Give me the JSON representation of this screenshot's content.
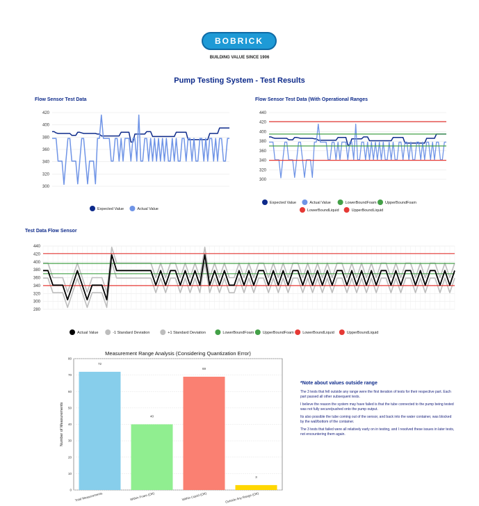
{
  "header": {
    "logo_text": "BOBRICK",
    "tagline": "BUILDING VALUE SINCE 1906",
    "page_title": "Pump Testing System - Test Results"
  },
  "colors": {
    "expected": "#0d2a8a",
    "actual_blue": "#6f94e6",
    "foam_green": "#43a047",
    "liquid_red": "#e53935",
    "std": "#bdbdbd",
    "actual_black": "#000000"
  },
  "note": {
    "title": "*Note about values outside range",
    "paragraphs": [
      "The 3 tests that fell outside any range were the first iteration of tests for their respective part. Each part passed all other subsequent tests.",
      "I believe the reason the system may have failed is that the tube connected to the pump being tested was not fully secure/pushed onto the pump output.",
      "Its also possible the tube coming out of the sensor, and back into the water container, was blocked by the wall/bottom of the container.",
      "The 3 tests that failed were all relatively early on in testing, and I resolved these issues in later tests, not encountering them again."
    ]
  },
  "chart_data": [
    {
      "type": "line",
      "title": "Flow Sensor Test Data",
      "ylim": [
        300,
        420
      ],
      "yticks": [
        "300",
        "320",
        "340",
        "360",
        "380",
        "400",
        "420"
      ],
      "legend_position": "bottom",
      "series": [
        {
          "name": "Expected Value",
          "values": [
            389,
            389,
            387,
            386,
            386,
            386,
            386,
            386,
            386,
            386,
            383,
            383,
            383,
            388,
            388,
            387,
            386,
            386,
            386,
            386,
            386,
            386,
            386,
            385,
            385,
            382,
            382,
            382,
            382,
            382,
            382,
            382,
            382,
            382,
            382,
            388,
            388,
            388,
            388,
            388,
            372,
            372,
            385,
            385,
            385,
            385,
            385,
            385,
            389,
            389,
            389,
            381,
            381,
            381,
            381,
            381,
            381,
            381,
            381,
            381,
            381,
            381,
            381,
            388,
            388,
            388,
            388,
            388,
            388,
            376,
            376,
            376,
            376,
            376,
            376,
            376,
            376,
            376,
            376,
            376,
            386,
            386,
            386,
            386,
            386,
            395,
            395,
            395,
            395,
            395,
            395
          ]
        },
        {
          "name": "Actual Value",
          "values": [
            378,
            378,
            378,
            341,
            341,
            341,
            303,
            341,
            378,
            378,
            341,
            341,
            341,
            304,
            341,
            378,
            378,
            341,
            304,
            341,
            341,
            341,
            304,
            378,
            378,
            416,
            378,
            378,
            378,
            378,
            341,
            341,
            378,
            378,
            341,
            378,
            341,
            378,
            378,
            378,
            341,
            378,
            378,
            341,
            416,
            341,
            341,
            378,
            378,
            341,
            378,
            341,
            378,
            341,
            378,
            341,
            378,
            341,
            378,
            341,
            341,
            378,
            341,
            378,
            341,
            341,
            378,
            378,
            341,
            378,
            378,
            341,
            378,
            341,
            341,
            378,
            378,
            341,
            378,
            341,
            378,
            378,
            341,
            378,
            341,
            378,
            378,
            341,
            341,
            378,
            378
          ]
        }
      ]
    },
    {
      "type": "line",
      "title": "Flow Sensor Test Data (With Operational Ranges",
      "ylim": [
        300,
        440
      ],
      "yticks": [
        "300",
        "320",
        "340",
        "360",
        "380",
        "400",
        "420",
        "440"
      ],
      "legend_position": "bottom",
      "series": [
        {
          "name": "Expected Value",
          "values": [
            389,
            389,
            387,
            386,
            386,
            386,
            386,
            386,
            386,
            386,
            383,
            383,
            383,
            388,
            388,
            387,
            386,
            386,
            386,
            386,
            386,
            386,
            386,
            385,
            385,
            382,
            382,
            382,
            382,
            382,
            382,
            382,
            382,
            382,
            382,
            388,
            388,
            388,
            388,
            388,
            372,
            372,
            385,
            385,
            385,
            385,
            385,
            385,
            389,
            389,
            389,
            381,
            381,
            381,
            381,
            381,
            381,
            381,
            381,
            381,
            381,
            381,
            381,
            388,
            388,
            388,
            388,
            388,
            388,
            376,
            376,
            376,
            376,
            376,
            376,
            376,
            376,
            376,
            376,
            376,
            386,
            386,
            386,
            386,
            386,
            395,
            395,
            395,
            395,
            395,
            395
          ]
        },
        {
          "name": "Actual Value",
          "values": [
            378,
            378,
            378,
            341,
            341,
            341,
            303,
            341,
            378,
            378,
            341,
            341,
            341,
            304,
            341,
            378,
            378,
            341,
            304,
            341,
            341,
            341,
            304,
            378,
            378,
            416,
            378,
            378,
            378,
            378,
            341,
            341,
            378,
            378,
            341,
            378,
            341,
            378,
            378,
            378,
            341,
            378,
            378,
            341,
            416,
            341,
            341,
            378,
            378,
            341,
            378,
            341,
            378,
            341,
            378,
            341,
            378,
            341,
            378,
            341,
            341,
            378,
            341,
            378,
            341,
            341,
            378,
            378,
            341,
            378,
            378,
            341,
            378,
            341,
            341,
            378,
            378,
            341,
            378,
            341,
            378,
            378,
            341,
            378,
            341,
            378,
            378,
            341,
            341,
            378,
            378
          ]
        },
        {
          "name": "LowerBoundFoam",
          "constant": 370
        },
        {
          "name": "UpperBoundFoam",
          "constant": 395
        },
        {
          "name": "LowerBoundLiquid",
          "constant": 340
        },
        {
          "name": "UpperBoundLiquid",
          "constant": 421
        }
      ]
    },
    {
      "type": "line",
      "title": "Test Data Flow Sensor",
      "ylim": [
        280,
        440
      ],
      "yticks": [
        "280",
        "300",
        "320",
        "340",
        "360",
        "380",
        "400",
        "420",
        "440"
      ],
      "legend_position": "bottom",
      "series": [
        {
          "name": "Actual Value",
          "values": [
            378,
            378,
            341,
            341,
            341,
            304,
            341,
            378,
            341,
            304,
            341,
            341,
            341,
            304,
            418,
            378,
            378,
            378,
            378,
            378,
            378,
            378,
            378,
            341,
            378,
            341,
            378,
            378,
            341,
            378,
            341,
            378,
            341,
            418,
            341,
            378,
            341,
            378,
            341,
            341,
            378,
            341,
            378,
            341,
            378,
            378,
            341,
            378,
            341,
            378,
            341,
            378,
            378,
            341,
            378,
            341,
            378,
            341,
            378,
            341,
            378,
            378,
            341,
            378,
            341,
            378,
            341,
            378,
            341,
            378,
            378,
            341,
            378,
            341,
            378,
            378,
            341,
            378,
            341,
            378,
            378,
            341,
            378,
            341,
            378
          ]
        },
        {
          "name": "-1 Standard Deviation",
          "offset": -19
        },
        {
          "name": "+1 Standard Deviation",
          "offset": 19
        },
        {
          "name": "LowerBoundFoam",
          "constant": 370
        },
        {
          "name": "UpperBoundFoam",
          "constant": 396
        },
        {
          "name": "LowerBoundLiquid",
          "constant": 340
        },
        {
          "name": "UpperBoundLiquid",
          "constant": 421
        }
      ]
    },
    {
      "type": "bar",
      "title": "Measurement Range Analysis (Considering Quantization Error)",
      "ylabel": "Number of Measurements",
      "ylim": [
        0,
        80
      ],
      "yticks": [
        "0",
        "10",
        "20",
        "30",
        "40",
        "50",
        "60",
        "70",
        "80"
      ],
      "categories": [
        "Total Measurements",
        "Within Foam (OK)",
        "Within Liquid (OK)",
        "Outside Any Range (OK)"
      ],
      "values": [
        72,
        40,
        69,
        3
      ],
      "bar_colors": [
        "#87ceeb",
        "#90ee90",
        "#fa8072",
        "#ffd700"
      ]
    }
  ]
}
